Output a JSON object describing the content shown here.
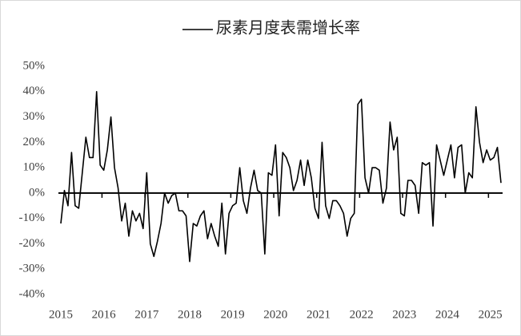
{
  "chart_data": {
    "type": "line",
    "categories": [
      "2015",
      null,
      null,
      null,
      null,
      null,
      null,
      null,
      null,
      null,
      null,
      null,
      "2016",
      null,
      null,
      null,
      null,
      null,
      null,
      null,
      null,
      null,
      null,
      null,
      "2017",
      null,
      null,
      null,
      null,
      null,
      null,
      null,
      null,
      null,
      null,
      null,
      "2018",
      null,
      null,
      null,
      null,
      null,
      null,
      null,
      null,
      null,
      null,
      null,
      "2019",
      null,
      null,
      null,
      null,
      null,
      null,
      null,
      null,
      null,
      null,
      null,
      "2020",
      null,
      null,
      null,
      null,
      null,
      null,
      null,
      null,
      null,
      null,
      null,
      "2021",
      null,
      null,
      null,
      null,
      null,
      null,
      null,
      null,
      null,
      null,
      null,
      "2022",
      null,
      null,
      null,
      null,
      null,
      null,
      null,
      null,
      null,
      null,
      null,
      "2023",
      null,
      null,
      null,
      null,
      null,
      null,
      null,
      null,
      null,
      null,
      null,
      "2024",
      null,
      null,
      null,
      null,
      null,
      null,
      null,
      null,
      null,
      null,
      null,
      "2025",
      null,
      null,
      null
    ],
    "series": [
      {
        "name": "尿素月度表需增长率",
        "color": "#000000",
        "values": [
          -12,
          1,
          -5,
          16,
          -5,
          -6,
          8,
          22,
          14,
          14,
          40,
          11,
          9,
          17,
          30,
          10,
          2,
          -11,
          -4,
          -17,
          -7,
          -11,
          -8,
          -14,
          8,
          -20,
          -25,
          -19,
          -12,
          0,
          -4,
          -1,
          0,
          -7,
          -7,
          -9,
          -27,
          -12,
          -13,
          -9,
          -7,
          -18,
          -12,
          -17,
          -21,
          -4,
          -24,
          -8,
          -5,
          -4,
          10,
          -3,
          -8,
          2,
          9,
          1,
          0,
          -24,
          8,
          7,
          19,
          -9,
          16,
          14,
          10,
          1,
          5,
          13,
          3,
          13,
          6,
          -6,
          -10,
          20,
          -5,
          -10,
          -3,
          -3,
          -5,
          -8,
          -17,
          -10,
          -8,
          35,
          37,
          6,
          0,
          10,
          10,
          9,
          -4,
          2,
          28,
          17,
          22,
          -8,
          -9,
          5,
          5,
          3,
          -8,
          12,
          11,
          12,
          -13,
          19,
          13,
          7,
          13,
          19,
          6,
          18,
          19,
          0,
          8,
          6,
          34,
          20,
          12,
          17,
          13,
          14,
          18,
          4
        ]
      }
    ],
    "ylim": [
      -40,
      50
    ],
    "yticks": [
      {
        "value": 50,
        "label": "50%"
      },
      {
        "value": 40,
        "label": "40%"
      },
      {
        "value": 30,
        "label": "30%"
      },
      {
        "value": 20,
        "label": "20%"
      },
      {
        "value": 10,
        "label": "10%"
      },
      {
        "value": 0,
        "label": "0%"
      },
      {
        "value": -10,
        "label": "-10%"
      },
      {
        "value": -20,
        "label": "-20%"
      },
      {
        "value": -30,
        "label": "-30%"
      },
      {
        "value": -40,
        "label": "-40%"
      }
    ],
    "grid": false,
    "legend": "top"
  }
}
